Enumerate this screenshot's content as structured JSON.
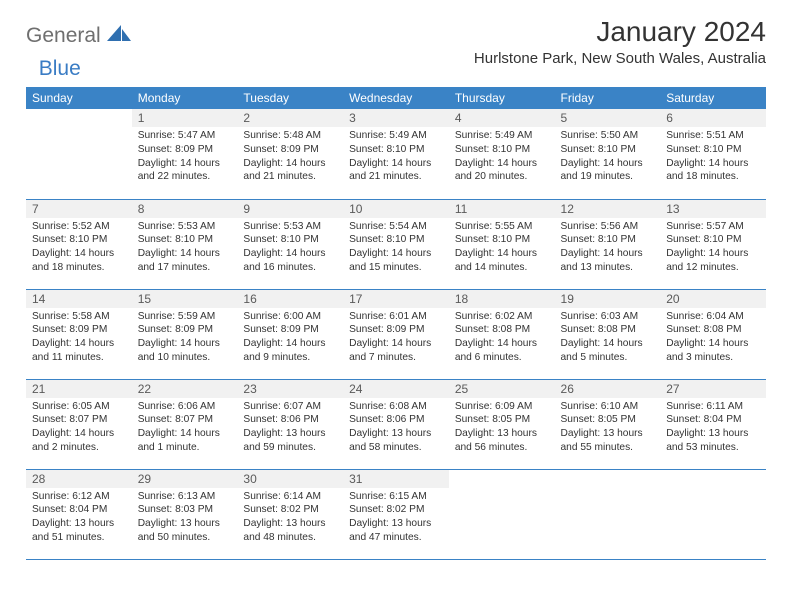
{
  "logo": {
    "general": "General",
    "blue": "Blue"
  },
  "title": "January 2024",
  "location": "Hurlstone Park, New South Wales, Australia",
  "colors": {
    "header_bg": "#3a83c6",
    "header_text": "#ffffff",
    "daynum_bg": "#f1f1f1",
    "daynum_text": "#5a5a5a",
    "body_text": "#333333",
    "logo_gray": "#6f6f6f",
    "logo_blue": "#3a7cc4",
    "page_bg": "#ffffff",
    "row_border": "#3a83c6"
  },
  "typography": {
    "title_fontsize": 28,
    "location_fontsize": 15,
    "header_fontsize": 12,
    "daynum_fontsize": 12,
    "body_fontsize": 10.2,
    "logo_fontsize": 21
  },
  "dayHeaders": [
    "Sunday",
    "Monday",
    "Tuesday",
    "Wednesday",
    "Thursday",
    "Friday",
    "Saturday"
  ],
  "weeks": [
    [
      {
        "num": "",
        "sunrise": "",
        "sunset": "",
        "daylight1": "",
        "daylight2": ""
      },
      {
        "num": "1",
        "sunrise": "Sunrise: 5:47 AM",
        "sunset": "Sunset: 8:09 PM",
        "daylight1": "Daylight: 14 hours",
        "daylight2": "and 22 minutes."
      },
      {
        "num": "2",
        "sunrise": "Sunrise: 5:48 AM",
        "sunset": "Sunset: 8:09 PM",
        "daylight1": "Daylight: 14 hours",
        "daylight2": "and 21 minutes."
      },
      {
        "num": "3",
        "sunrise": "Sunrise: 5:49 AM",
        "sunset": "Sunset: 8:10 PM",
        "daylight1": "Daylight: 14 hours",
        "daylight2": "and 21 minutes."
      },
      {
        "num": "4",
        "sunrise": "Sunrise: 5:49 AM",
        "sunset": "Sunset: 8:10 PM",
        "daylight1": "Daylight: 14 hours",
        "daylight2": "and 20 minutes."
      },
      {
        "num": "5",
        "sunrise": "Sunrise: 5:50 AM",
        "sunset": "Sunset: 8:10 PM",
        "daylight1": "Daylight: 14 hours",
        "daylight2": "and 19 minutes."
      },
      {
        "num": "6",
        "sunrise": "Sunrise: 5:51 AM",
        "sunset": "Sunset: 8:10 PM",
        "daylight1": "Daylight: 14 hours",
        "daylight2": "and 18 minutes."
      }
    ],
    [
      {
        "num": "7",
        "sunrise": "Sunrise: 5:52 AM",
        "sunset": "Sunset: 8:10 PM",
        "daylight1": "Daylight: 14 hours",
        "daylight2": "and 18 minutes."
      },
      {
        "num": "8",
        "sunrise": "Sunrise: 5:53 AM",
        "sunset": "Sunset: 8:10 PM",
        "daylight1": "Daylight: 14 hours",
        "daylight2": "and 17 minutes."
      },
      {
        "num": "9",
        "sunrise": "Sunrise: 5:53 AM",
        "sunset": "Sunset: 8:10 PM",
        "daylight1": "Daylight: 14 hours",
        "daylight2": "and 16 minutes."
      },
      {
        "num": "10",
        "sunrise": "Sunrise: 5:54 AM",
        "sunset": "Sunset: 8:10 PM",
        "daylight1": "Daylight: 14 hours",
        "daylight2": "and 15 minutes."
      },
      {
        "num": "11",
        "sunrise": "Sunrise: 5:55 AM",
        "sunset": "Sunset: 8:10 PM",
        "daylight1": "Daylight: 14 hours",
        "daylight2": "and 14 minutes."
      },
      {
        "num": "12",
        "sunrise": "Sunrise: 5:56 AM",
        "sunset": "Sunset: 8:10 PM",
        "daylight1": "Daylight: 14 hours",
        "daylight2": "and 13 minutes."
      },
      {
        "num": "13",
        "sunrise": "Sunrise: 5:57 AM",
        "sunset": "Sunset: 8:10 PM",
        "daylight1": "Daylight: 14 hours",
        "daylight2": "and 12 minutes."
      }
    ],
    [
      {
        "num": "14",
        "sunrise": "Sunrise: 5:58 AM",
        "sunset": "Sunset: 8:09 PM",
        "daylight1": "Daylight: 14 hours",
        "daylight2": "and 11 minutes."
      },
      {
        "num": "15",
        "sunrise": "Sunrise: 5:59 AM",
        "sunset": "Sunset: 8:09 PM",
        "daylight1": "Daylight: 14 hours",
        "daylight2": "and 10 minutes."
      },
      {
        "num": "16",
        "sunrise": "Sunrise: 6:00 AM",
        "sunset": "Sunset: 8:09 PM",
        "daylight1": "Daylight: 14 hours",
        "daylight2": "and 9 minutes."
      },
      {
        "num": "17",
        "sunrise": "Sunrise: 6:01 AM",
        "sunset": "Sunset: 8:09 PM",
        "daylight1": "Daylight: 14 hours",
        "daylight2": "and 7 minutes."
      },
      {
        "num": "18",
        "sunrise": "Sunrise: 6:02 AM",
        "sunset": "Sunset: 8:08 PM",
        "daylight1": "Daylight: 14 hours",
        "daylight2": "and 6 minutes."
      },
      {
        "num": "19",
        "sunrise": "Sunrise: 6:03 AM",
        "sunset": "Sunset: 8:08 PM",
        "daylight1": "Daylight: 14 hours",
        "daylight2": "and 5 minutes."
      },
      {
        "num": "20",
        "sunrise": "Sunrise: 6:04 AM",
        "sunset": "Sunset: 8:08 PM",
        "daylight1": "Daylight: 14 hours",
        "daylight2": "and 3 minutes."
      }
    ],
    [
      {
        "num": "21",
        "sunrise": "Sunrise: 6:05 AM",
        "sunset": "Sunset: 8:07 PM",
        "daylight1": "Daylight: 14 hours",
        "daylight2": "and 2 minutes."
      },
      {
        "num": "22",
        "sunrise": "Sunrise: 6:06 AM",
        "sunset": "Sunset: 8:07 PM",
        "daylight1": "Daylight: 14 hours",
        "daylight2": "and 1 minute."
      },
      {
        "num": "23",
        "sunrise": "Sunrise: 6:07 AM",
        "sunset": "Sunset: 8:06 PM",
        "daylight1": "Daylight: 13 hours",
        "daylight2": "and 59 minutes."
      },
      {
        "num": "24",
        "sunrise": "Sunrise: 6:08 AM",
        "sunset": "Sunset: 8:06 PM",
        "daylight1": "Daylight: 13 hours",
        "daylight2": "and 58 minutes."
      },
      {
        "num": "25",
        "sunrise": "Sunrise: 6:09 AM",
        "sunset": "Sunset: 8:05 PM",
        "daylight1": "Daylight: 13 hours",
        "daylight2": "and 56 minutes."
      },
      {
        "num": "26",
        "sunrise": "Sunrise: 6:10 AM",
        "sunset": "Sunset: 8:05 PM",
        "daylight1": "Daylight: 13 hours",
        "daylight2": "and 55 minutes."
      },
      {
        "num": "27",
        "sunrise": "Sunrise: 6:11 AM",
        "sunset": "Sunset: 8:04 PM",
        "daylight1": "Daylight: 13 hours",
        "daylight2": "and 53 minutes."
      }
    ],
    [
      {
        "num": "28",
        "sunrise": "Sunrise: 6:12 AM",
        "sunset": "Sunset: 8:04 PM",
        "daylight1": "Daylight: 13 hours",
        "daylight2": "and 51 minutes."
      },
      {
        "num": "29",
        "sunrise": "Sunrise: 6:13 AM",
        "sunset": "Sunset: 8:03 PM",
        "daylight1": "Daylight: 13 hours",
        "daylight2": "and 50 minutes."
      },
      {
        "num": "30",
        "sunrise": "Sunrise: 6:14 AM",
        "sunset": "Sunset: 8:02 PM",
        "daylight1": "Daylight: 13 hours",
        "daylight2": "and 48 minutes."
      },
      {
        "num": "31",
        "sunrise": "Sunrise: 6:15 AM",
        "sunset": "Sunset: 8:02 PM",
        "daylight1": "Daylight: 13 hours",
        "daylight2": "and 47 minutes."
      },
      {
        "num": "",
        "sunrise": "",
        "sunset": "",
        "daylight1": "",
        "daylight2": ""
      },
      {
        "num": "",
        "sunrise": "",
        "sunset": "",
        "daylight1": "",
        "daylight2": ""
      },
      {
        "num": "",
        "sunrise": "",
        "sunset": "",
        "daylight1": "",
        "daylight2": ""
      }
    ]
  ]
}
